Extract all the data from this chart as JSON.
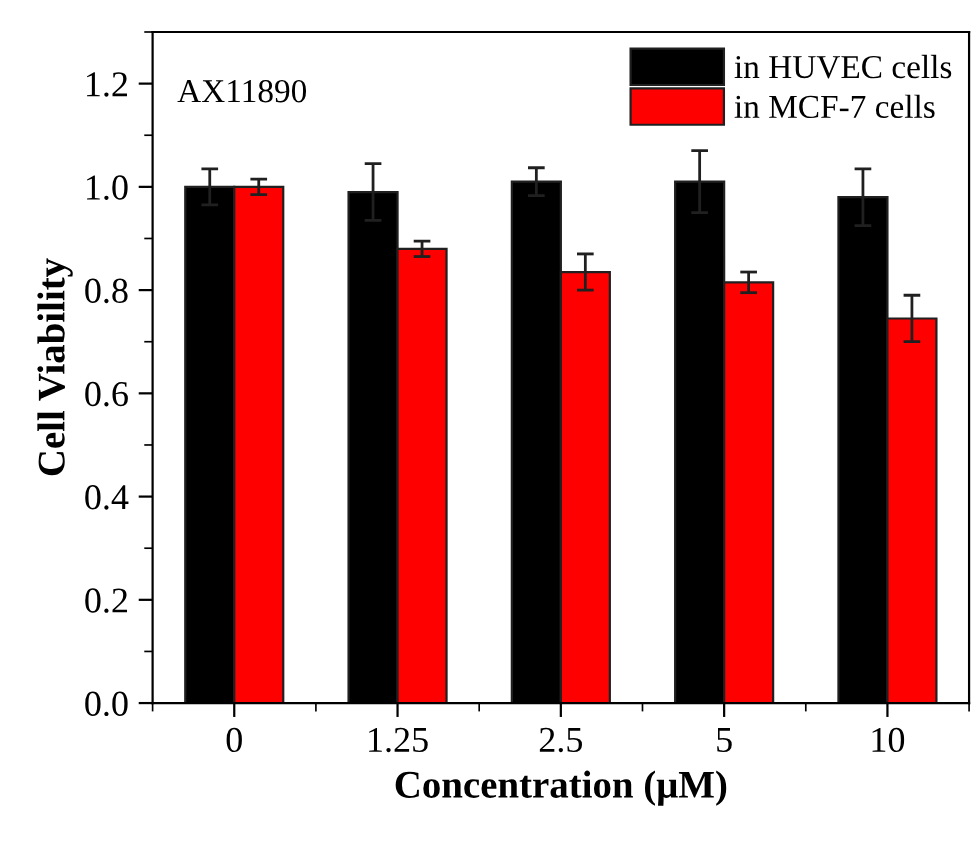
{
  "chart_data": {
    "type": "bar",
    "xlabel": "Concentration (μM)",
    "ylabel": "Cell Viability",
    "categories": [
      "0",
      "1.25",
      "2.5",
      "5",
      "10"
    ],
    "series": [
      {
        "name": "in HUVEC cells",
        "color": "#000000",
        "values": [
          1.0,
          0.99,
          1.01,
          1.01,
          0.98
        ],
        "errors": [
          0.035,
          0.055,
          0.027,
          0.06,
          0.055
        ]
      },
      {
        "name": "in MCF-7 cells",
        "color": "#ff0000",
        "values": [
          1.0,
          0.88,
          0.835,
          0.815,
          0.745
        ],
        "errors": [
          0.015,
          0.015,
          0.035,
          0.02,
          0.045
        ]
      }
    ],
    "annotations": [
      "AX11890"
    ],
    "ylim": [
      0,
      1.3
    ],
    "yticks": [
      {
        "value": 0,
        "label": "0.0"
      },
      0.2,
      0.4,
      0.6,
      0.8,
      {
        "value": 1,
        "label": "1.0"
      },
      1.2
    ],
    "legend": "top right",
    "grid": false
  }
}
